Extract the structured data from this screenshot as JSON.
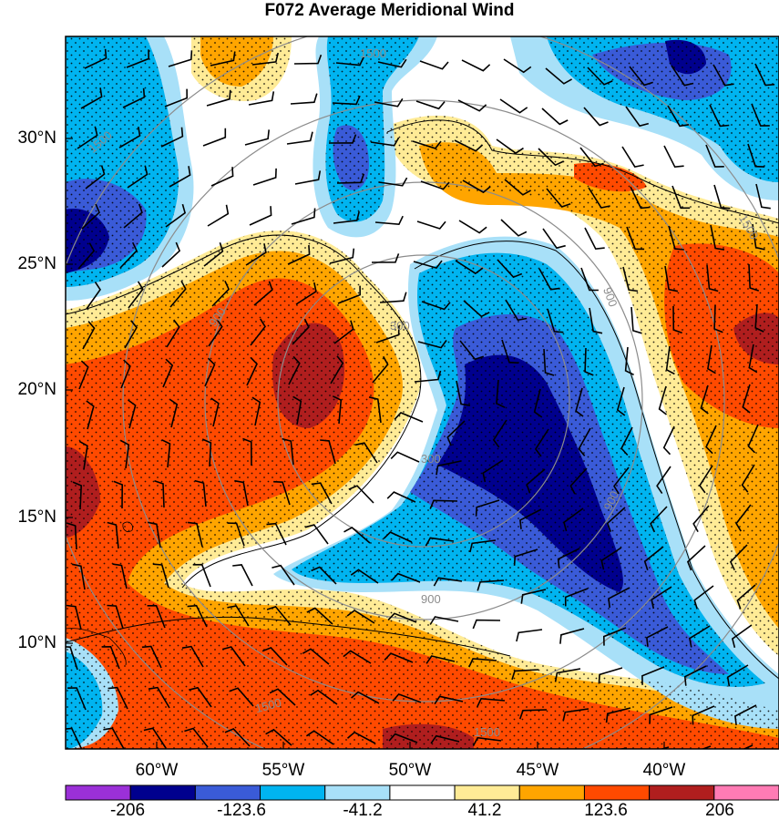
{
  "title": "F072 Average Meridional Wind",
  "lat_labels": [
    "30°N",
    "25°N",
    "20°N",
    "15°N",
    "10°N"
  ],
  "lon_labels": [
    "60°W",
    "55°W",
    "50°W",
    "45°W",
    "40°W"
  ],
  "colorbar": {
    "colors": [
      "#9b30d8",
      "#00008e",
      "#3a5bd8",
      "#00b4f0",
      "#a8e0f8",
      "#ffffff",
      "#ffeb96",
      "#ffa500",
      "#ff4a00",
      "#b01e1e",
      "#ff7bb4"
    ],
    "labels": [
      "-206",
      "-123.6",
      "-41.2",
      "41.2",
      "123.6",
      "206"
    ]
  },
  "range_ring_labels": [
    "300",
    "300",
    "900",
    "900",
    "900",
    "900",
    "1500",
    "1500",
    "1500",
    "1500",
    "1500"
  ]
}
